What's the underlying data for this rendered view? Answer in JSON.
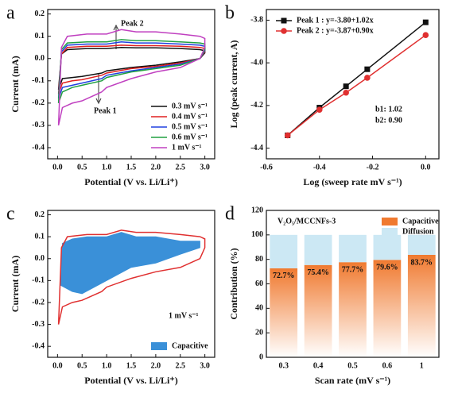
{
  "chart_data": [
    {
      "type": "line",
      "panel": "a",
      "xlabel": "Potential (V vs. Li/Li⁺)",
      "ylabel": "Current (mA)",
      "xlim": [
        -0.2,
        3.2
      ],
      "ylim": [
        -0.45,
        0.22
      ],
      "xticks": [
        {
          "value": 0,
          "label": "0.0"
        },
        0.5,
        {
          "value": 1,
          "label": "1.0"
        },
        1.5,
        {
          "value": 2,
          "label": "2.0"
        },
        2.5,
        {
          "value": 3,
          "label": "3.0"
        }
      ],
      "yticks": [
        -0.4,
        -0.3,
        -0.2,
        -0.1,
        {
          "value": 0,
          "label": "0.0"
        },
        0.1,
        0.2
      ],
      "legend": "lower right",
      "annotations": [
        {
          "text": "Peak 2",
          "color": "#111"
        },
        {
          "text": "Peak 1",
          "color": "#111"
        }
      ],
      "x": [
        0.02,
        0.08,
        0.2,
        0.6,
        1.0,
        1.3,
        1.6,
        2.0,
        2.5,
        2.9,
        3.0,
        3.0,
        2.9,
        2.5,
        2.0,
        1.5,
        1.0,
        0.9,
        0.5,
        0.3,
        0.1,
        0.02
      ],
      "series": [
        {
          "name": "0.3 mV s⁻¹",
          "color": "#111111",
          "values": [
            -0.14,
            0.02,
            0.04,
            0.045,
            0.045,
            0.05,
            0.048,
            0.048,
            0.045,
            0.04,
            0.035,
            0.025,
            0.0,
            -0.015,
            -0.03,
            -0.04,
            -0.055,
            -0.065,
            -0.08,
            -0.085,
            -0.09,
            -0.14
          ]
        },
        {
          "name": "0.4 mV s⁻¹",
          "color": "#e02020",
          "values": [
            -0.16,
            0.02,
            0.05,
            0.055,
            0.055,
            0.06,
            0.058,
            0.058,
            0.055,
            0.05,
            0.045,
            0.03,
            0.0,
            -0.02,
            -0.035,
            -0.045,
            -0.065,
            -0.075,
            -0.095,
            -0.1,
            -0.11,
            -0.16
          ]
        },
        {
          "name": "0.5 mV s⁻¹",
          "color": "#2040e0",
          "values": [
            -0.18,
            0.03,
            0.06,
            0.065,
            0.065,
            0.075,
            0.07,
            0.07,
            0.065,
            0.06,
            0.055,
            0.035,
            0.0,
            -0.025,
            -0.04,
            -0.055,
            -0.075,
            -0.09,
            -0.11,
            -0.12,
            -0.13,
            -0.18
          ]
        },
        {
          "name": "0.6 mV s⁻¹",
          "color": "#20a040",
          "values": [
            -0.2,
            0.04,
            0.07,
            0.075,
            0.075,
            0.085,
            0.08,
            0.08,
            0.075,
            0.07,
            0.065,
            0.04,
            0.0,
            -0.03,
            -0.045,
            -0.06,
            -0.085,
            -0.1,
            -0.12,
            -0.13,
            -0.15,
            -0.2
          ]
        },
        {
          "name": "1 mV s⁻¹",
          "color": "#c040c0",
          "values": [
            -0.3,
            0.05,
            0.1,
            0.11,
            0.11,
            0.13,
            0.12,
            0.12,
            0.11,
            0.1,
            0.09,
            0.05,
            0.0,
            -0.04,
            -0.06,
            -0.09,
            -0.13,
            -0.15,
            -0.19,
            -0.2,
            -0.22,
            -0.3
          ]
        }
      ]
    },
    {
      "type": "line",
      "panel": "b",
      "xlabel": "Log (sweep rate mV s⁻¹)",
      "ylabel": "Log (peak current, A)",
      "xlim": [
        -0.6,
        0.05
      ],
      "ylim": [
        -4.45,
        -3.75
      ],
      "xticks": [
        -0.6,
        -0.4,
        -0.2,
        {
          "value": 0,
          "label": "0.0"
        }
      ],
      "yticks": [
        -4.4,
        -4.2,
        {
          "value": -4,
          "label": "-4.0"
        },
        -3.8
      ],
      "legend": "upper left",
      "annotations": [
        {
          "text": "b1: 1.02",
          "color": "#111111"
        },
        {
          "text": "b2: 0.90",
          "color": "#e03030"
        }
      ],
      "x": [
        -0.52,
        -0.4,
        -0.3,
        -0.22,
        0.0
      ],
      "series": [
        {
          "name": "Peak 1 : y=-3.80+1.02x",
          "color": "#111111",
          "marker": "square",
          "values": [
            -4.34,
            -4.21,
            -4.11,
            -4.03,
            -3.81
          ]
        },
        {
          "name": "Peak 2 : y=-3.87+0.90x",
          "color": "#e03030",
          "marker": "circle",
          "values": [
            -4.34,
            -4.22,
            -4.14,
            -4.07,
            -3.87
          ]
        }
      ]
    },
    {
      "type": "line",
      "panel": "c",
      "xlabel": "Potential (V vs. Li/Li⁺)",
      "ylabel": "Current (mA)",
      "xlim": [
        -0.2,
        3.2
      ],
      "ylim": [
        -0.45,
        0.22
      ],
      "xticks": [
        {
          "value": 0,
          "label": "0.0"
        },
        0.5,
        {
          "value": 1,
          "label": "1.0"
        },
        1.5,
        {
          "value": 2,
          "label": "2.0"
        },
        2.5,
        {
          "value": 3,
          "label": "3.0"
        }
      ],
      "yticks": [
        -0.4,
        -0.3,
        -0.2,
        -0.1,
        {
          "value": 0,
          "label": "0.0"
        },
        0.1,
        0.2
      ],
      "legend": "lower right",
      "annotations": [
        {
          "text": "1 mV s⁻¹",
          "color": "#111111"
        }
      ],
      "series": [
        {
          "name": "Capacitive",
          "color": "#3a90d8",
          "fill": true,
          "x": [
            0.05,
            0.1,
            0.3,
            0.6,
            1.0,
            1.3,
            1.6,
            2.0,
            2.5,
            2.9,
            2.9,
            2.5,
            2.0,
            1.5,
            1.0,
            0.5,
            0.3,
            0.05
          ],
          "values": [
            -0.12,
            0.07,
            0.09,
            0.1,
            0.1,
            0.12,
            0.1,
            0.1,
            0.08,
            0.08,
            0.05,
            0.02,
            -0.02,
            -0.04,
            -0.1,
            -0.16,
            -0.15,
            -0.12
          ]
        },
        {
          "color": "#e03030",
          "x": [
            0.02,
            0.08,
            0.2,
            0.6,
            1.0,
            1.3,
            1.6,
            2.0,
            2.5,
            2.9,
            3.0,
            3.0,
            2.9,
            2.5,
            2.0,
            1.5,
            1.0,
            0.9,
            0.5,
            0.3,
            0.1,
            0.02
          ],
          "values": [
            -0.3,
            0.05,
            0.1,
            0.11,
            0.11,
            0.13,
            0.12,
            0.12,
            0.11,
            0.1,
            0.09,
            0.05,
            0.0,
            -0.04,
            -0.06,
            -0.09,
            -0.13,
            -0.15,
            -0.19,
            -0.2,
            -0.22,
            -0.3
          ]
        }
      ]
    },
    {
      "type": "bar",
      "panel": "d",
      "xlabel": "Scan rate (mV s⁻¹)",
      "ylabel": "Contribution (%)",
      "subtitle": "V₂O₅/MCCNFs-3",
      "ylim": [
        0,
        120
      ],
      "yticks": [
        0,
        20,
        40,
        60,
        80,
        100,
        120
      ],
      "legend": "upper right",
      "categories": [
        "0.3",
        "0.4",
        "0.5",
        "0.6",
        "1"
      ],
      "series": [
        {
          "name": "Capacitive",
          "color": "#f07a30",
          "values": [
            72.7,
            75.4,
            77.7,
            79.6,
            83.7
          ],
          "value_labels": [
            "72.7%",
            "75.4%",
            "77.7%",
            "79.6%",
            "83.7%"
          ]
        },
        {
          "name": "Diffusion",
          "color": "#cce8f4",
          "values": [
            27.3,
            24.6,
            22.3,
            20.4,
            16.3
          ]
        }
      ]
    }
  ]
}
